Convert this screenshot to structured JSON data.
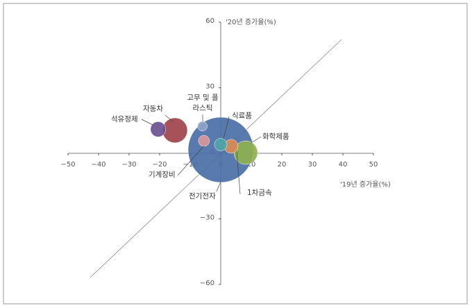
{
  "chart_data": {
    "type": "bubble",
    "xlabel": "'19년 증가율(%)",
    "ylabel": "'20년 증가율(%)",
    "xlim": [
      -50,
      50
    ],
    "ylim": [
      -60,
      60
    ],
    "xticks": [
      {
        "value": -50,
        "label": "−50"
      },
      {
        "value": -40,
        "label": "−40"
      },
      {
        "value": -30,
        "label": "−30"
      },
      {
        "value": -20,
        "label": "−20"
      },
      {
        "value": -10,
        "label": "−10"
      },
      0,
      10,
      20,
      30,
      40,
      50
    ],
    "yticks": [
      60,
      30,
      0,
      {
        "value": -30,
        "label": "−30"
      },
      {
        "value": -60,
        "label": "−60"
      }
    ],
    "series": [
      {
        "name": "전기전자",
        "color": "#4a6fa5",
        "x": [
          0
        ],
        "values": [
          1.6
        ],
        "size": [
          47
        ]
      },
      {
        "name": "자동차",
        "color": "#a0434a",
        "x": [
          -15
        ],
        "values": [
          10.5
        ],
        "size": [
          18
        ]
      },
      {
        "name": "화학제품",
        "color": "#8fb04f",
        "x": [
          8.2
        ],
        "values": [
          0.3
        ],
        "size": [
          17
        ]
      },
      {
        "name": "석유정제",
        "color": "#6b5190",
        "x": [
          -20.5
        ],
        "values": [
          11
        ],
        "size": [
          11
        ]
      },
      {
        "name": "1차금속",
        "color": "#d98a52",
        "x": [
          3.4
        ],
        "values": [
          3.2
        ],
        "size": [
          10
        ]
      },
      {
        "name": "식료품",
        "color": "#4fa4a8",
        "x": [
          0
        ],
        "values": [
          4
        ],
        "size": [
          9
        ]
      },
      {
        "name": "기계장비",
        "color": "#d9959a",
        "x": [
          -5.5
        ],
        "values": [
          5.7
        ],
        "size": [
          8
        ]
      },
      {
        "name": "고무 및 플라스틱",
        "color": "#8fa3c9",
        "x": [
          -6
        ],
        "values": [
          12.4
        ],
        "size": [
          7
        ]
      }
    ]
  }
}
